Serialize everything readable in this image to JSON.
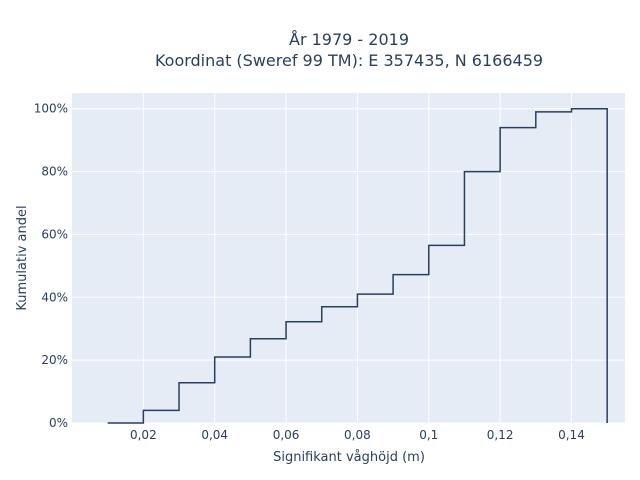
{
  "chart_data": {
    "type": "line",
    "style": "step-ecdf",
    "title_line1": "År 1979 - 2019",
    "title_line2": "Koordinat (Sweref 99 TM): E 357435, N 6166459",
    "xlabel": "Signifikant våghöjd (m)",
    "ylabel": "Kumulativ andel",
    "xlim": [
      0.0,
      0.155
    ],
    "ylim": [
      0,
      1.05
    ],
    "x_ticks": [
      0.02,
      0.04,
      0.06,
      0.08,
      0.1,
      0.12,
      0.14
    ],
    "x_tick_labels": [
      "0,02",
      "0,04",
      "0,06",
      "0,08",
      "0,1",
      "0,12",
      "0,14"
    ],
    "y_ticks": [
      0,
      0.2,
      0.4,
      0.6,
      0.8,
      1.0
    ],
    "y_tick_labels": [
      "0%",
      "20%",
      "40%",
      "60%",
      "80%",
      "100%"
    ],
    "grid": true,
    "series": [
      {
        "line_color": "#2a3f5f",
        "edges": [
          0.01,
          0.02,
          0.03,
          0.04,
          0.05,
          0.06,
          0.07,
          0.08,
          0.09,
          0.1,
          0.11,
          0.12,
          0.13,
          0.14,
          0.15
        ],
        "values": [
          0.0,
          0.04,
          0.128,
          0.21,
          0.268,
          0.322,
          0.37,
          0.41,
          0.472,
          0.565,
          0.8,
          0.94,
          0.99,
          1.0
        ]
      }
    ]
  },
  "colors": {
    "plot_background": "#e5ecf6",
    "grid": "#ffffff",
    "text": "#2a3f5f"
  }
}
